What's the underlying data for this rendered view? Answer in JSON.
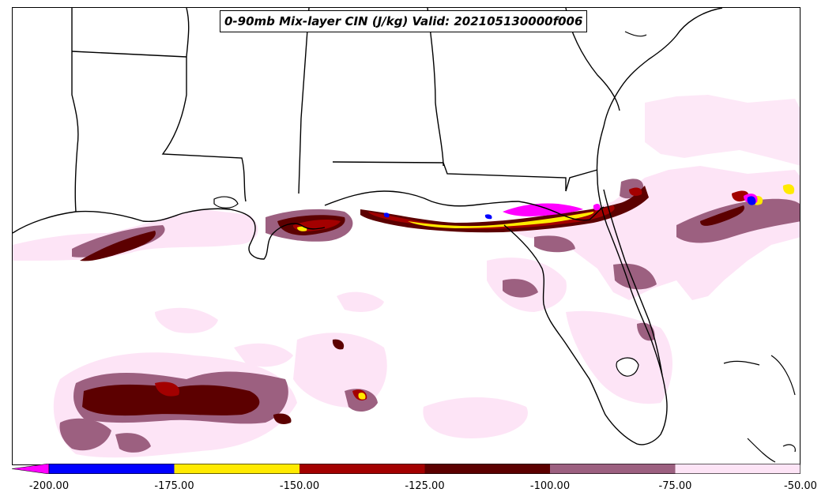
{
  "title": "0-90mb Mix-layer CIN (J/kg) Valid: 202105130000f006",
  "colorbar": {
    "ticks": [
      "-200.00",
      "-175.00",
      "-150.00",
      "-125.00",
      "-100.00",
      "-75.00",
      "-50.00"
    ],
    "extend": "min",
    "extend_color": "#ff00ff",
    "bins": [
      {
        "from": -200,
        "to": -175,
        "color": "#0000ff"
      },
      {
        "from": -175,
        "to": -150,
        "color": "#ffea00"
      },
      {
        "from": -150,
        "to": -125,
        "color": "#a30000"
      },
      {
        "from": -125,
        "to": -100,
        "color": "#5c0000"
      },
      {
        "from": -100,
        "to": -75,
        "color": "#9c6080"
      },
      {
        "from": -75,
        "to": -50,
        "color": "#fde4f6"
      }
    ]
  },
  "colors": {
    "boundary": "#000000",
    "lt50": "#fde4f6",
    "lt75": "#9c6080",
    "lt100": "#5c0000",
    "lt125": "#a30000",
    "lt150": "#ffea00",
    "lt175": "#0000ff",
    "lt200": "#ff00ff"
  }
}
